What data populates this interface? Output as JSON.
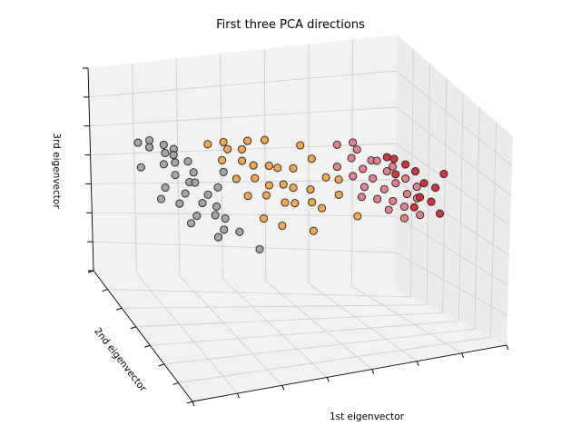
{
  "chart_data": {
    "type": "scatter",
    "title": "First three PCA directions",
    "xlabel": "1st eigenvector",
    "ylabel": "2nd eigenvector",
    "zlabel": "3rd eigenvector",
    "tick_labels_shown": false,
    "grid": true,
    "colors": {
      "gray": "#9c9c9c",
      "orange": "#f0a040",
      "pink": "#e07582",
      "red": "#cc2230"
    },
    "points": [
      {
        "x": -3.2,
        "y": 1.1,
        "z": 0.9,
        "c": "gray"
      },
      {
        "x": -3.0,
        "y": 0.9,
        "z": 1.1,
        "c": "gray"
      },
      {
        "x": -2.9,
        "y": 1.2,
        "z": 0.7,
        "c": "gray"
      },
      {
        "x": -2.7,
        "y": 0.8,
        "z": 1.0,
        "c": "gray"
      },
      {
        "x": -2.6,
        "y": 1.0,
        "z": 0.6,
        "c": "gray"
      },
      {
        "x": -2.5,
        "y": 0.7,
        "z": 0.9,
        "c": "gray"
      },
      {
        "x": -3.3,
        "y": 0.6,
        "z": 0.2,
        "c": "gray"
      },
      {
        "x": -2.8,
        "y": 0.5,
        "z": 0.4,
        "c": "gray"
      },
      {
        "x": -2.4,
        "y": 0.9,
        "z": 0.3,
        "c": "gray"
      },
      {
        "x": -2.2,
        "y": 0.6,
        "z": 0.5,
        "c": "gray"
      },
      {
        "x": -2.6,
        "y": 0.3,
        "z": 0.1,
        "c": "gray"
      },
      {
        "x": -2.3,
        "y": 0.2,
        "z": -0.1,
        "c": "gray"
      },
      {
        "x": -2.0,
        "y": 0.8,
        "z": 0.0,
        "c": "gray"
      },
      {
        "x": -2.9,
        "y": 0.1,
        "z": -0.3,
        "c": "gray"
      },
      {
        "x": -2.5,
        "y": -0.1,
        "z": -0.4,
        "c": "gray"
      },
      {
        "x": -2.1,
        "y": 0.4,
        "z": -0.2,
        "c": "gray"
      },
      {
        "x": -1.9,
        "y": 0.1,
        "z": -0.5,
        "c": "gray"
      },
      {
        "x": -2.7,
        "y": -0.3,
        "z": -0.7,
        "c": "gray"
      },
      {
        "x": -2.2,
        "y": -0.4,
        "z": -0.6,
        "c": "gray"
      },
      {
        "x": -1.8,
        "y": -0.2,
        "z": -0.8,
        "c": "gray"
      },
      {
        "x": -2.4,
        "y": -0.6,
        "z": -1.0,
        "c": "gray"
      },
      {
        "x": -2.0,
        "y": -0.7,
        "z": -0.9,
        "c": "gray"
      },
      {
        "x": -1.7,
        "y": -0.5,
        "z": -1.1,
        "c": "gray"
      },
      {
        "x": -2.6,
        "y": -0.8,
        "z": -1.2,
        "c": "gray"
      },
      {
        "x": -3.1,
        "y": -0.2,
        "z": -0.6,
        "c": "gray"
      },
      {
        "x": -1.6,
        "y": 0.3,
        "z": -0.3,
        "c": "gray"
      },
      {
        "x": -2.3,
        "y": 1.3,
        "z": 0.4,
        "c": "gray"
      },
      {
        "x": -1.9,
        "y": -1.0,
        "z": -1.3,
        "c": "gray"
      },
      {
        "x": -2.1,
        "y": -1.2,
        "z": -1.5,
        "c": "gray"
      },
      {
        "x": -1.5,
        "y": -0.9,
        "z": -1.4,
        "c": "gray"
      },
      {
        "x": -1.2,
        "y": -1.4,
        "z": -1.8,
        "c": "gray"
      },
      {
        "x": -1.4,
        "y": 0.5,
        "z": 0.2,
        "c": "gray"
      },
      {
        "x": -1.6,
        "y": 1.0,
        "z": 1.0,
        "c": "orange"
      },
      {
        "x": -1.3,
        "y": 0.8,
        "z": 1.2,
        "c": "orange"
      },
      {
        "x": -1.1,
        "y": 1.1,
        "z": 0.8,
        "c": "orange"
      },
      {
        "x": -0.9,
        "y": 0.7,
        "z": 1.0,
        "c": "orange"
      },
      {
        "x": -0.6,
        "y": 1.2,
        "z": 1.1,
        "c": "orange"
      },
      {
        "x": -0.3,
        "y": 0.9,
        "z": 1.3,
        "c": "orange"
      },
      {
        "x": -1.4,
        "y": 0.6,
        "z": 0.6,
        "c": "orange"
      },
      {
        "x": -1.0,
        "y": 0.4,
        "z": 0.7,
        "c": "orange"
      },
      {
        "x": -0.7,
        "y": 0.5,
        "z": 0.5,
        "c": "orange"
      },
      {
        "x": -0.4,
        "y": 0.3,
        "z": 0.6,
        "c": "orange"
      },
      {
        "x": -0.1,
        "y": 0.6,
        "z": 0.4,
        "c": "orange"
      },
      {
        "x": 0.2,
        "y": 0.4,
        "z": 0.5,
        "c": "orange"
      },
      {
        "x": -1.2,
        "y": 0.2,
        "z": 0.1,
        "c": "orange"
      },
      {
        "x": -0.8,
        "y": 0.1,
        "z": 0.2,
        "c": "orange"
      },
      {
        "x": -0.5,
        "y": 0.0,
        "z": 0.0,
        "c": "orange"
      },
      {
        "x": -0.2,
        "y": -0.1,
        "z": 0.1,
        "c": "orange"
      },
      {
        "x": 0.1,
        "y": 0.1,
        "z": -0.1,
        "c": "orange"
      },
      {
        "x": 0.4,
        "y": -0.2,
        "z": 0.0,
        "c": "orange"
      },
      {
        "x": -1.1,
        "y": -0.3,
        "z": -0.3,
        "c": "orange"
      },
      {
        "x": -0.7,
        "y": -0.4,
        "z": -0.2,
        "c": "orange"
      },
      {
        "x": -0.3,
        "y": -0.5,
        "z": -0.4,
        "c": "orange"
      },
      {
        "x": 0.0,
        "y": -0.3,
        "z": -0.5,
        "c": "orange"
      },
      {
        "x": 0.3,
        "y": -0.6,
        "z": -0.3,
        "c": "orange"
      },
      {
        "x": 0.6,
        "y": -0.4,
        "z": -0.6,
        "c": "orange"
      },
      {
        "x": -0.9,
        "y": -0.8,
        "z": -0.9,
        "c": "orange"
      },
      {
        "x": -0.5,
        "y": -0.9,
        "z": -1.1,
        "c": "orange"
      },
      {
        "x": 0.7,
        "y": 0.6,
        "z": 0.8,
        "c": "orange"
      },
      {
        "x": 0.9,
        "y": 0.2,
        "z": 0.3,
        "c": "orange"
      },
      {
        "x": 1.1,
        "y": -0.1,
        "z": -0.2,
        "c": "orange"
      },
      {
        "x": 0.5,
        "y": 0.8,
        "z": 1.2,
        "c": "orange"
      },
      {
        "x": 1.3,
        "y": 0.5,
        "z": 0.1,
        "c": "orange"
      },
      {
        "x": 0.2,
        "y": -1.0,
        "z": -1.2,
        "c": "orange"
      },
      {
        "x": 1.4,
        "y": -0.5,
        "z": -0.8,
        "c": "orange"
      },
      {
        "x": 1.5,
        "y": 1.2,
        "z": 1.1,
        "c": "pink"
      },
      {
        "x": 1.8,
        "y": 1.0,
        "z": 1.3,
        "c": "pink"
      },
      {
        "x": 2.0,
        "y": 1.3,
        "z": 0.9,
        "c": "pink"
      },
      {
        "x": 1.7,
        "y": 0.8,
        "z": 0.8,
        "c": "pink"
      },
      {
        "x": 2.2,
        "y": 0.9,
        "z": 0.7,
        "c": "pink"
      },
      {
        "x": 1.9,
        "y": 0.6,
        "z": 0.5,
        "c": "pink"
      },
      {
        "x": 2.4,
        "y": 1.1,
        "z": 0.6,
        "c": "pink"
      },
      {
        "x": 1.6,
        "y": 0.4,
        "z": 0.3,
        "c": "pink"
      },
      {
        "x": 2.1,
        "y": 0.5,
        "z": 0.2,
        "c": "pink"
      },
      {
        "x": 2.5,
        "y": 0.7,
        "z": 0.4,
        "c": "pink"
      },
      {
        "x": 2.7,
        "y": 0.9,
        "z": 0.5,
        "c": "pink"
      },
      {
        "x": 1.8,
        "y": 0.2,
        "z": 0.0,
        "c": "pink"
      },
      {
        "x": 2.3,
        "y": 0.3,
        "z": -0.1,
        "c": "pink"
      },
      {
        "x": 2.6,
        "y": 0.4,
        "z": 0.1,
        "c": "pink"
      },
      {
        "x": 2.9,
        "y": 0.6,
        "z": 0.2,
        "c": "pink"
      },
      {
        "x": 2.0,
        "y": -0.1,
        "z": -0.3,
        "c": "pink"
      },
      {
        "x": 2.4,
        "y": 0.0,
        "z": -0.4,
        "c": "pink"
      },
      {
        "x": 2.8,
        "y": 0.2,
        "z": -0.2,
        "c": "pink"
      },
      {
        "x": 2.2,
        "y": -0.3,
        "z": -0.6,
        "c": "pink"
      },
      {
        "x": 2.6,
        "y": -0.2,
        "z": -0.5,
        "c": "pink"
      },
      {
        "x": 3.0,
        "y": 0.1,
        "z": -0.3,
        "c": "pink"
      },
      {
        "x": 2.5,
        "y": -0.5,
        "z": -0.8,
        "c": "pink"
      },
      {
        "x": 1.4,
        "y": 0.9,
        "z": 0.4,
        "c": "pink"
      },
      {
        "x": 3.1,
        "y": 0.4,
        "z": 0.0,
        "c": "pink"
      },
      {
        "x": 2.9,
        "y": -0.4,
        "z": -0.7,
        "c": "pink"
      },
      {
        "x": 1.6,
        "y": -0.2,
        "z": -0.2,
        "c": "pink"
      },
      {
        "x": 2.6,
        "y": 1.0,
        "z": 0.8,
        "c": "red"
      },
      {
        "x": 2.8,
        "y": 1.1,
        "z": 0.7,
        "c": "red"
      },
      {
        "x": 3.0,
        "y": 0.9,
        "z": 0.6,
        "c": "red"
      },
      {
        "x": 2.7,
        "y": 0.7,
        "z": 0.3,
        "c": "red"
      },
      {
        "x": 3.2,
        "y": 0.8,
        "z": 0.4,
        "c": "red"
      },
      {
        "x": 3.3,
        "y": 0.5,
        "z": 0.1,
        "c": "red"
      },
      {
        "x": 3.1,
        "y": 0.2,
        "z": -0.3,
        "c": "red"
      },
      {
        "x": 3.4,
        "y": 0.3,
        "z": -0.5,
        "c": "red"
      },
      {
        "x": 3.6,
        "y": 0.6,
        "z": -0.1,
        "c": "red"
      },
      {
        "x": 3.9,
        "y": 0.9,
        "z": 0.3,
        "c": "red"
      },
      {
        "x": 2.9,
        "y": 0.0,
        "z": -0.6,
        "c": "red"
      },
      {
        "x": 3.5,
        "y": 0.0,
        "z": -0.8,
        "c": "red"
      }
    ]
  }
}
